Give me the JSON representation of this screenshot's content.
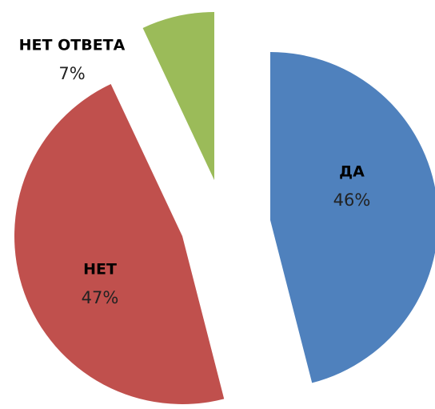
{
  "chart_data": {
    "type": "pie",
    "categories": [
      "ДА",
      "НЕТ",
      "НЕТ ОТВЕТА"
    ],
    "values": [
      46,
      47,
      7
    ],
    "value_labels": [
      "46%",
      "47%",
      "7%"
    ],
    "colors": [
      "#4f81bd",
      "#c0504d",
      "#9bbb59"
    ]
  }
}
